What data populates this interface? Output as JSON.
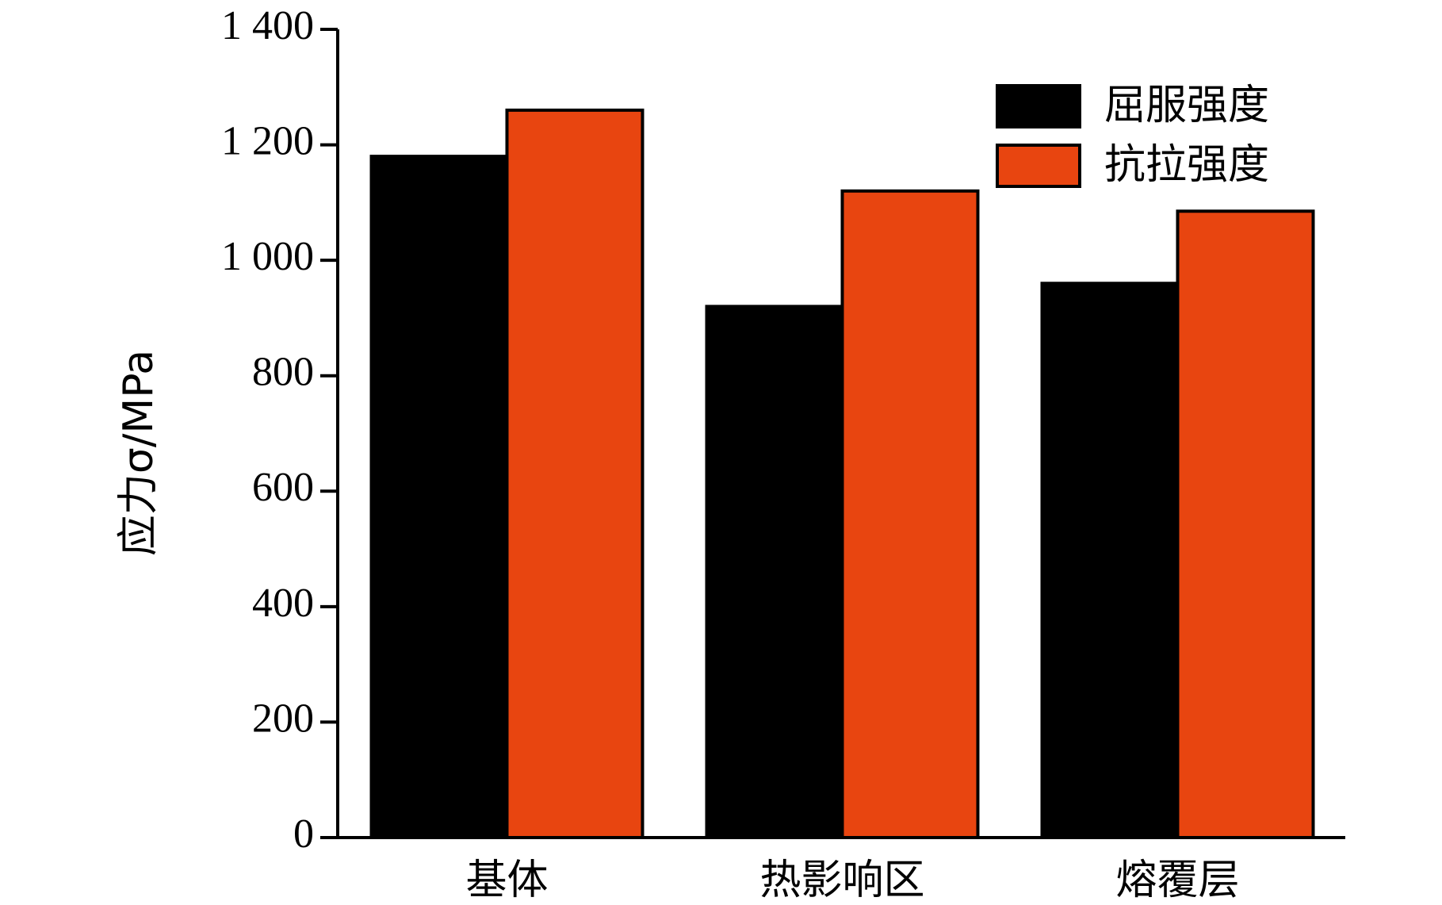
{
  "chart_data": {
    "type": "bar",
    "y_label": "应力σ/MPa",
    "categories": [
      "基体",
      "热影响区",
      "熔覆层"
    ],
    "series": [
      {
        "name": "屈服强度",
        "color": "#000000",
        "values": [
          1180,
          920,
          960
        ]
      },
      {
        "name": "抗拉强度",
        "color": "#e84510",
        "values": [
          1260,
          1120,
          1085
        ]
      }
    ],
    "ylim": [
      0,
      1400
    ],
    "yticks": [
      0,
      200,
      400,
      600,
      800,
      {
        "value": 1000,
        "label": "1 000"
      },
      {
        "value": 1200,
        "label": "1 200"
      },
      {
        "value": 1400,
        "label": "1 400"
      }
    ],
    "legend": "upper right"
  }
}
